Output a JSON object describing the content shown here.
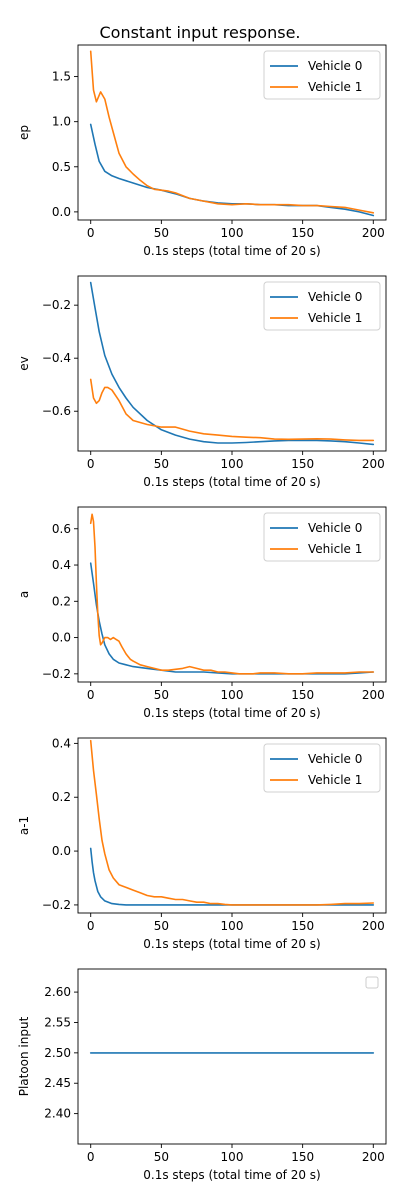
{
  "figure_title": "Constant input response.",
  "colors": {
    "vehicle0": "#1f77b4",
    "vehicle1": "#ff7f0e",
    "axes": "#000000"
  },
  "chart_data": [
    {
      "type": "line",
      "ylabel": "ep",
      "xlabel": "0.1s steps (total time of 20 s)",
      "xlim": [
        -9,
        209
      ],
      "ylim": [
        -0.09,
        1.85
      ],
      "xticks": [
        0,
        50,
        100,
        150,
        200
      ],
      "yticks": [
        0.0,
        0.5,
        1.0,
        1.5
      ],
      "ytick_labels": [
        "0.0",
        "0.5",
        "1.0",
        "1.5"
      ],
      "legend": "top-right",
      "series": [
        {
          "name": "Vehicle 0",
          "color": "#1f77b4",
          "x": [
            0,
            3,
            6,
            10,
            15,
            20,
            30,
            40,
            50,
            60,
            70,
            80,
            90,
            100,
            110,
            120,
            130,
            140,
            150,
            160,
            170,
            180,
            190,
            200
          ],
          "y": [
            0.97,
            0.75,
            0.56,
            0.45,
            0.4,
            0.37,
            0.32,
            0.27,
            0.24,
            0.2,
            0.15,
            0.12,
            0.1,
            0.09,
            0.09,
            0.08,
            0.08,
            0.07,
            0.07,
            0.07,
            0.05,
            0.03,
            0.0,
            -0.04
          ]
        },
        {
          "name": "Vehicle 1",
          "color": "#ff7f0e",
          "x": [
            0,
            2,
            4,
            7,
            10,
            13,
            16,
            20,
            25,
            30,
            35,
            40,
            45,
            50,
            55,
            60,
            70,
            80,
            90,
            100,
            110,
            120,
            130,
            140,
            150,
            160,
            170,
            180,
            190,
            200
          ],
          "y": [
            1.78,
            1.35,
            1.22,
            1.33,
            1.25,
            1.05,
            0.88,
            0.65,
            0.5,
            0.42,
            0.35,
            0.29,
            0.25,
            0.24,
            0.23,
            0.21,
            0.15,
            0.12,
            0.09,
            0.08,
            0.09,
            0.08,
            0.08,
            0.08,
            0.07,
            0.07,
            0.06,
            0.05,
            0.02,
            -0.01
          ]
        }
      ]
    },
    {
      "type": "line",
      "ylabel": "ev",
      "xlabel": "0.1s steps (total time of 20 s)",
      "xlim": [
        -9,
        209
      ],
      "ylim": [
        -0.75,
        -0.09
      ],
      "xticks": [
        0,
        50,
        100,
        150,
        200
      ],
      "yticks": [
        -0.6,
        -0.4,
        -0.2
      ],
      "ytick_labels": [
        "−0.6",
        "−0.4",
        "−0.2"
      ],
      "legend": "top-right",
      "series": [
        {
          "name": "Vehicle 0",
          "color": "#1f77b4",
          "x": [
            0,
            3,
            6,
            10,
            15,
            20,
            25,
            30,
            40,
            50,
            60,
            70,
            80,
            90,
            100,
            110,
            120,
            130,
            140,
            150,
            160,
            170,
            180,
            190,
            200
          ],
          "y": [
            -0.115,
            -0.21,
            -0.3,
            -0.39,
            -0.46,
            -0.51,
            -0.55,
            -0.585,
            -0.635,
            -0.67,
            -0.69,
            -0.705,
            -0.715,
            -0.72,
            -0.72,
            -0.718,
            -0.715,
            -0.712,
            -0.71,
            -0.71,
            -0.71,
            -0.712,
            -0.715,
            -0.72,
            -0.725
          ]
        },
        {
          "name": "Vehicle 1",
          "color": "#ff7f0e",
          "x": [
            0,
            2,
            4,
            6,
            8,
            10,
            12,
            15,
            20,
            25,
            30,
            40,
            50,
            60,
            70,
            80,
            90,
            100,
            110,
            120,
            130,
            140,
            150,
            160,
            170,
            180,
            190,
            200
          ],
          "y": [
            -0.48,
            -0.55,
            -0.57,
            -0.56,
            -0.53,
            -0.51,
            -0.51,
            -0.52,
            -0.56,
            -0.61,
            -0.635,
            -0.65,
            -0.66,
            -0.66,
            -0.675,
            -0.685,
            -0.69,
            -0.695,
            -0.698,
            -0.7,
            -0.705,
            -0.706,
            -0.705,
            -0.704,
            -0.705,
            -0.708,
            -0.71,
            -0.71
          ]
        }
      ]
    },
    {
      "type": "line",
      "ylabel": "a",
      "xlabel": "0.1s steps (total time of 20 s)",
      "xlim": [
        -9,
        209
      ],
      "ylim": [
        -0.245,
        0.72
      ],
      "xticks": [
        0,
        50,
        100,
        150,
        200
      ],
      "yticks": [
        -0.2,
        0.0,
        0.2,
        0.4,
        0.6
      ],
      "ytick_labels": [
        "−0.2",
        "0.0",
        "0.2",
        "0.4",
        "0.6"
      ],
      "legend": "top-right",
      "series": [
        {
          "name": "Vehicle 0",
          "color": "#1f77b4",
          "x": [
            0,
            2,
            4,
            6,
            8,
            10,
            13,
            16,
            20,
            25,
            30,
            40,
            50,
            60,
            70,
            80,
            90,
            100,
            110,
            120,
            130,
            140,
            150,
            160,
            170,
            180,
            190,
            200
          ],
          "y": [
            0.41,
            0.3,
            0.18,
            0.09,
            0.02,
            -0.04,
            -0.09,
            -0.12,
            -0.14,
            -0.15,
            -0.16,
            -0.17,
            -0.18,
            -0.19,
            -0.19,
            -0.19,
            -0.195,
            -0.2,
            -0.2,
            -0.2,
            -0.2,
            -0.2,
            -0.2,
            -0.2,
            -0.2,
            -0.2,
            -0.195,
            -0.19
          ]
        },
        {
          "name": "Vehicle 1",
          "color": "#ff7f0e",
          "x": [
            0,
            1,
            2,
            3,
            4,
            5,
            6,
            7,
            8,
            10,
            12,
            14,
            16,
            18,
            20,
            22,
            25,
            28,
            30,
            35,
            40,
            45,
            50,
            55,
            60,
            65,
            70,
            75,
            80,
            85,
            90,
            95,
            100,
            105,
            110,
            115,
            120,
            130,
            140,
            150,
            160,
            170,
            180,
            190,
            200
          ],
          "y": [
            0.63,
            0.68,
            0.64,
            0.5,
            0.3,
            0.13,
            0.01,
            -0.04,
            -0.03,
            0.0,
            0.0,
            -0.01,
            0.0,
            -0.01,
            -0.02,
            -0.05,
            -0.09,
            -0.12,
            -0.13,
            -0.15,
            -0.16,
            -0.17,
            -0.18,
            -0.18,
            -0.175,
            -0.17,
            -0.16,
            -0.17,
            -0.18,
            -0.18,
            -0.19,
            -0.19,
            -0.195,
            -0.2,
            -0.2,
            -0.2,
            -0.195,
            -0.195,
            -0.2,
            -0.2,
            -0.195,
            -0.195,
            -0.195,
            -0.19,
            -0.19
          ]
        }
      ]
    },
    {
      "type": "line",
      "ylabel": "a-1",
      "xlabel": "0.1s steps (total time of 20 s)",
      "xlim": [
        -9,
        209
      ],
      "ylim": [
        -0.23,
        0.42
      ],
      "xticks": [
        0,
        50,
        100,
        150,
        200
      ],
      "yticks": [
        -0.2,
        0.0,
        0.2,
        0.4
      ],
      "ytick_labels": [
        "−0.2",
        "0.0",
        "0.2",
        "0.4"
      ],
      "legend": "top-right",
      "series": [
        {
          "name": "Vehicle 0",
          "color": "#1f77b4",
          "x": [
            0,
            1,
            2,
            3,
            5,
            7,
            10,
            15,
            20,
            25,
            30,
            40,
            50,
            60,
            80,
            100,
            120,
            140,
            160,
            180,
            200
          ],
          "y": [
            0.01,
            -0.04,
            -0.08,
            -0.11,
            -0.15,
            -0.17,
            -0.185,
            -0.195,
            -0.198,
            -0.2,
            -0.2,
            -0.2,
            -0.2,
            -0.2,
            -0.2,
            -0.2,
            -0.2,
            -0.2,
            -0.2,
            -0.2,
            -0.2
          ]
        },
        {
          "name": "Vehicle 1",
          "color": "#ff7f0e",
          "x": [
            0,
            2,
            4,
            6,
            8,
            10,
            13,
            16,
            20,
            25,
            30,
            35,
            40,
            45,
            50,
            55,
            60,
            65,
            70,
            75,
            80,
            85,
            90,
            95,
            100,
            105,
            110,
            120,
            130,
            140,
            150,
            160,
            170,
            180,
            190,
            200
          ],
          "y": [
            0.41,
            0.3,
            0.21,
            0.12,
            0.04,
            -0.01,
            -0.07,
            -0.1,
            -0.125,
            -0.135,
            -0.145,
            -0.155,
            -0.165,
            -0.17,
            -0.17,
            -0.175,
            -0.18,
            -0.18,
            -0.185,
            -0.19,
            -0.19,
            -0.195,
            -0.195,
            -0.198,
            -0.2,
            -0.2,
            -0.2,
            -0.2,
            -0.2,
            -0.2,
            -0.2,
            -0.2,
            -0.198,
            -0.195,
            -0.195,
            -0.193
          ]
        }
      ]
    },
    {
      "type": "line",
      "ylabel": "Platoon input",
      "xlabel": "0.1s steps (total time of 20 s)",
      "xlim": [
        -9,
        209
      ],
      "ylim": [
        2.35,
        2.638
      ],
      "xticks": [
        0,
        50,
        100,
        150,
        200
      ],
      "yticks": [
        2.4,
        2.45,
        2.5,
        2.55,
        2.6
      ],
      "ytick_labels": [
        "2.40",
        "2.45",
        "2.50",
        "2.55",
        "2.60"
      ],
      "legend": "empty-top-right",
      "series": [
        {
          "color": "#1f77b4",
          "x": [
            0,
            200
          ],
          "y": [
            2.5,
            2.5
          ]
        }
      ]
    }
  ]
}
